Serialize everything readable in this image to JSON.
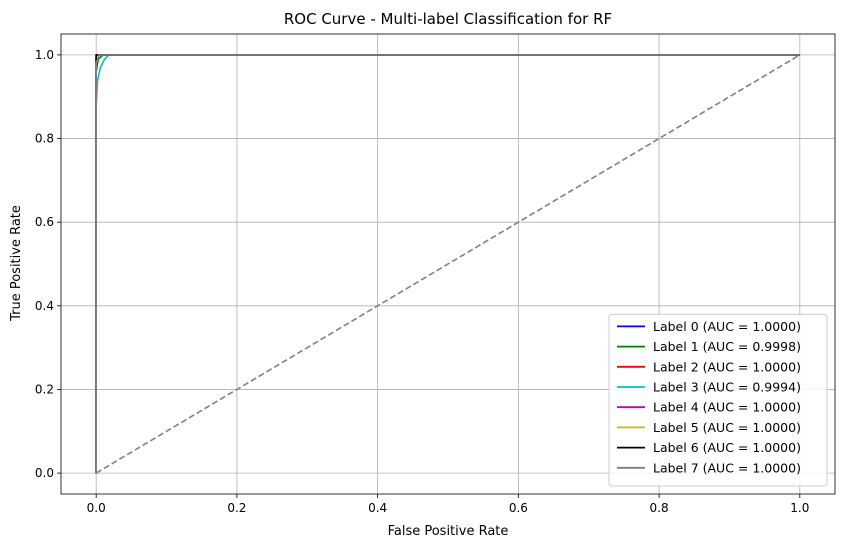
{
  "chart_data": {
    "type": "line",
    "title": "ROC Curve - Multi-label Classification for RF",
    "xlabel": "False Positive Rate",
    "ylabel": "True Positive Rate",
    "xlim": [
      -0.05,
      1.05
    ],
    "ylim": [
      -0.05,
      1.05
    ],
    "xticks": [
      0.0,
      0.2,
      0.4,
      0.6,
      0.8,
      1.0
    ],
    "yticks": [
      0.0,
      0.2,
      0.4,
      0.6,
      0.8,
      1.0
    ],
    "xtick_labels": [
      "0.0",
      "0.2",
      "0.4",
      "0.6",
      "0.8",
      "1.0"
    ],
    "ytick_labels": [
      "0.0",
      "0.2",
      "0.4",
      "0.6",
      "0.8",
      "1.0"
    ],
    "grid": true,
    "legend_position": "lower-right",
    "series": [
      {
        "name": "Label 0 (AUC = 1.0000)",
        "color": "#0000ff",
        "x": [
          0,
          0,
          1
        ],
        "y": [
          0,
          1,
          1
        ]
      },
      {
        "name": "Label 1 (AUC = 0.9998)",
        "color": "#008000",
        "x": [
          0,
          0,
          0.003,
          0.01,
          1
        ],
        "y": [
          0,
          0.96,
          0.99,
          1,
          1
        ]
      },
      {
        "name": "Label 2 (AUC = 1.0000)",
        "color": "#ff0000",
        "x": [
          0,
          0,
          1
        ],
        "y": [
          0,
          1,
          1
        ]
      },
      {
        "name": "Label 3 (AUC = 0.9994)",
        "color": "#00bfbf",
        "x": [
          0,
          0,
          0.002,
          0.006,
          0.012,
          0.018,
          1
        ],
        "y": [
          0,
          0.88,
          0.94,
          0.97,
          0.99,
          1,
          1
        ]
      },
      {
        "name": "Label 4 (AUC = 1.0000)",
        "color": "#bf00bf",
        "x": [
          0,
          0,
          1
        ],
        "y": [
          0,
          1,
          1
        ]
      },
      {
        "name": "Label 5 (AUC = 1.0000)",
        "color": "#bfbf00",
        "x": [
          0,
          0,
          1
        ],
        "y": [
          0,
          1,
          1
        ]
      },
      {
        "name": "Label 6 (AUC = 1.0000)",
        "color": "#000000",
        "x": [
          0,
          0,
          1
        ],
        "y": [
          0,
          1,
          1
        ]
      },
      {
        "name": "Label 7 (AUC = 1.0000)",
        "color": "#808080",
        "x": [
          0,
          0,
          0.002,
          0.004,
          1
        ],
        "y": [
          0,
          0.98,
          0.99,
          1,
          1
        ]
      }
    ],
    "reference_line": {
      "color": "#808080",
      "style": "dashed",
      "x": [
        0,
        1
      ],
      "y": [
        0,
        1
      ]
    }
  }
}
